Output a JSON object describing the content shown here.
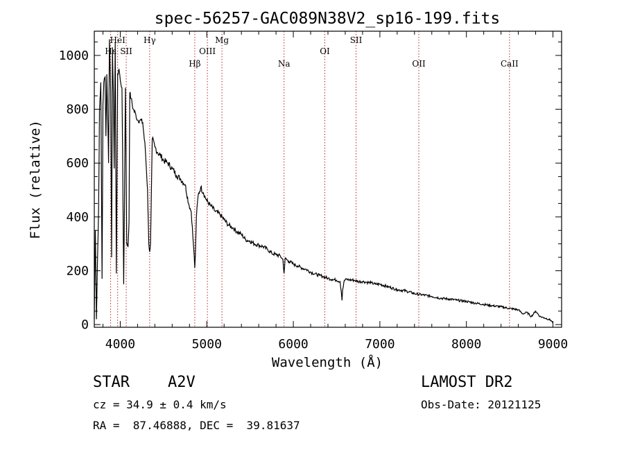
{
  "chart_data": {
    "type": "line",
    "title": "spec-56257-GAC089N38V2_sp16-199.fits",
    "xlabel": "Wavelength (Å)",
    "ylabel": "Flux (relative)",
    "xlim": [
      3700,
      9100
    ],
    "ylim": [
      -10,
      1090
    ],
    "x_ticks": [
      4000,
      5000,
      6000,
      7000,
      8000,
      9000
    ],
    "y_ticks": [
      0,
      200,
      400,
      600,
      800,
      1000
    ],
    "grid": false,
    "line_color": "#000000",
    "marker_color": "#b22222",
    "spectral_lines": [
      {
        "name": "Hε",
        "wavelength": 3889,
        "row": 2
      },
      {
        "name": "HeI",
        "wavelength": 3970,
        "row": 1
      },
      {
        "name": "SII",
        "wavelength": 4069,
        "row": 2
      },
      {
        "name": "Hγ",
        "wavelength": 4340,
        "row": 1
      },
      {
        "name": "Hβ",
        "wavelength": 4861,
        "row": 3
      },
      {
        "name": "OIII",
        "wavelength": 5007,
        "row": 2
      },
      {
        "name": "Mg",
        "wavelength": 5175,
        "row": 1
      },
      {
        "name": "Na",
        "wavelength": 5893,
        "row": 3
      },
      {
        "name": "OI",
        "wavelength": 6364,
        "row": 2
      },
      {
        "name": "SII",
        "wavelength": 6725,
        "row": 1
      },
      {
        "name": "OII",
        "wavelength": 7450,
        "row": 3
      },
      {
        "name": "CaII",
        "wavelength": 8498,
        "row": 3
      }
    ],
    "series": [
      {
        "x": [
          3700,
          3712,
          3725,
          3738,
          3750,
          3760,
          3775,
          3790,
          3800,
          3810,
          3825,
          3835,
          3845,
          3855,
          3865,
          3875,
          3889,
          3900,
          3910,
          3920,
          3930,
          3942,
          3955,
          3970,
          3985,
          4000,
          4020,
          4040,
          4060,
          4075,
          4090,
          4101,
          4110,
          4125,
          4150,
          4180,
          4200,
          4230,
          4260,
          4290,
          4315,
          4330,
          4340,
          4350,
          4370,
          4400,
          4430,
          4460,
          4500,
          4550,
          4600,
          4650,
          4700,
          4750,
          4790,
          4820,
          4845,
          4855,
          4861,
          4868,
          4880,
          4900,
          4930,
          4960,
          5000,
          5050,
          5100,
          5150,
          5200,
          5250,
          5300,
          5350,
          5400,
          5450,
          5500,
          5550,
          5600,
          5650,
          5700,
          5750,
          5800,
          5850,
          5880,
          5893,
          5905,
          5950,
          6000,
          6050,
          6100,
          6150,
          6200,
          6250,
          6300,
          6350,
          6400,
          6450,
          6500,
          6540,
          6555,
          6563,
          6570,
          6590,
          6620,
          6650,
          6700,
          6750,
          6800,
          6850,
          6900,
          6950,
          7000,
          7100,
          7200,
          7300,
          7400,
          7500,
          7600,
          7700,
          7800,
          7900,
          8000,
          8100,
          8200,
          8300,
          8400,
          8500,
          8600,
          8650,
          8700,
          8750,
          8800,
          8850,
          8900,
          8950,
          8980,
          9000
        ],
        "y": [
          20,
          350,
          20,
          250,
          430,
          800,
          900,
          170,
          820,
          900,
          920,
          700,
          930,
          780,
          600,
          1060,
          870,
          250,
          1030,
          870,
          580,
          1050,
          190,
          930,
          950,
          910,
          880,
          150,
          880,
          300,
          290,
          380,
          860,
          840,
          800,
          780,
          760,
          760,
          750,
          650,
          500,
          300,
          270,
          300,
          690,
          660,
          640,
          630,
          610,
          600,
          580,
          555,
          540,
          520,
          450,
          420,
          300,
          250,
          210,
          260,
          400,
          480,
          510,
          490,
          460,
          440,
          420,
          410,
          390,
          370,
          360,
          345,
          335,
          315,
          310,
          300,
          295,
          290,
          280,
          265,
          260,
          255,
          240,
          190,
          245,
          235,
          225,
          218,
          210,
          205,
          195,
          188,
          183,
          178,
          172,
          168,
          165,
          160,
          120,
          90,
          130,
          165,
          168,
          166,
          165,
          160,
          160,
          157,
          155,
          150,
          150,
          140,
          130,
          125,
          115,
          110,
          105,
          98,
          95,
          90,
          86,
          80,
          75,
          70,
          66,
          60,
          55,
          40,
          45,
          30,
          50,
          30,
          25,
          20,
          15,
          5
        ]
      }
    ]
  },
  "info": {
    "object_type": "STAR",
    "subclass": "A2V",
    "survey": "LAMOST DR2",
    "cz": "cz = 34.9 ± 0.4 km/s",
    "obs_date": "Obs-Date: 20121125",
    "coords": "RA =  87.46888, DEC =  39.81637"
  }
}
